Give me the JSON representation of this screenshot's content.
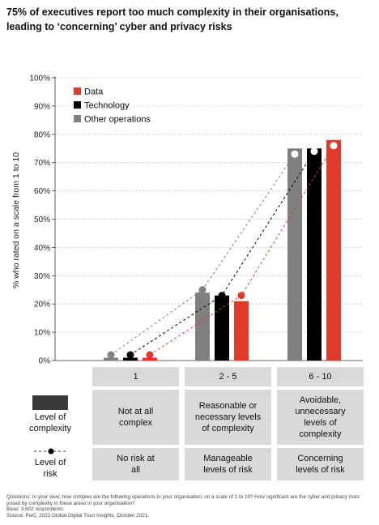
{
  "title": "75% of executives report too much complexity in their organisations, leading to ‘concerning’ cyber and privacy risks",
  "chart_data": {
    "type": "bar",
    "ylabel": "% who rated on a scale from 1 to 10",
    "ylim": [
      0,
      100
    ],
    "yticks": [
      "0%",
      "10%",
      "20%",
      "30%",
      "40%",
      "50%",
      "60%",
      "70%",
      "80%",
      "90%",
      "100%"
    ],
    "categories": [
      "1",
      "2 - 5",
      "6 - 10"
    ],
    "legend_position": "top-left",
    "series": [
      {
        "name": "Data",
        "color": "#e03a2a",
        "bars": [
          1,
          21,
          78
        ],
        "risk": [
          2,
          23,
          76
        ]
      },
      {
        "name": "Technology",
        "color": "#000000",
        "bars": [
          1,
          23,
          75
        ],
        "risk": [
          2,
          23,
          74
        ]
      },
      {
        "name": "Other operations",
        "color": "#808080",
        "bars": [
          1,
          24,
          75
        ],
        "risk": [
          2,
          25,
          73
        ]
      }
    ]
  },
  "table": {
    "complexity_label": "Level of complexity",
    "risk_label": "Level of risk",
    "complexity": [
      "Not at all complex",
      "Reasonable or necessary levels of complexity",
      "Avoidable, unnecessary levels of complexity"
    ],
    "risk": [
      "No risk at all",
      "Manageable levels of risk",
      "Concerning levels of risk"
    ]
  },
  "footnote": {
    "question": "Questions: In your view, how complex are the following operations in your organisation, on a scale of 1 to 10? How significant are the cyber and privacy risks posed by complexity in these areas in your organisation?",
    "base": "Base: 3,602 respondents",
    "source": "Source: PwC, 2022 Global Digital Trust Insights, October 2021."
  }
}
